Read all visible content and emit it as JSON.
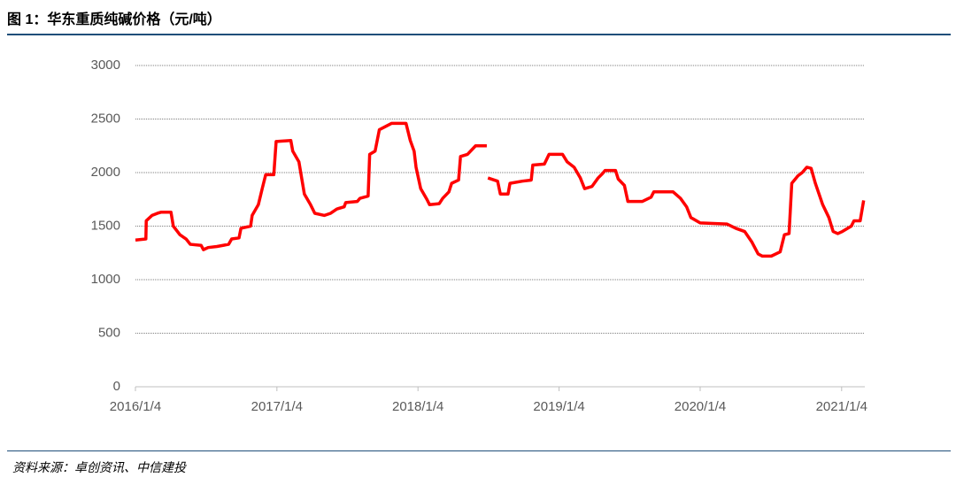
{
  "chart_data": {
    "type": "line",
    "title": "图 1：华东重质纯碱价格（元/吨）",
    "source": "资料来源：卓创资讯、中信建投",
    "color": "#ff0000",
    "x": [
      "2016/1/4",
      "2016/1/31",
      "2016/2/1",
      "2016/2/16",
      "2016/3/1",
      "2016/3/10",
      "2016/4/5",
      "2016/4/11",
      "2016/4/28",
      "2016/5/14",
      "2016/5/25",
      "2016/6/22",
      "2016/6/28",
      "2016/7/10",
      "2016/8/2",
      "2016/9/1",
      "2016/9/9",
      "2016/9/28",
      "2016/10/3",
      "2016/10/28",
      "2016/11/1",
      "2016/11/17",
      "2016/11/27",
      "2016/12/6",
      "2016/12/27",
      "2017/1/2",
      "2017/2/9",
      "2017/2/14",
      "2017/3/2",
      "2017/3/16",
      "2017/4/1",
      "2017/4/12",
      "2017/5/7",
      "2017/5/23",
      "2017/6/8",
      "2017/6/27",
      "2017/7/1",
      "2017/7/31",
      "2017/8/7",
      "2017/8/28",
      "2017/9/1",
      "2017/9/15",
      "2017/9/26",
      "2017/10/12",
      "2017/10/28",
      "2017/12/4",
      "2017/12/15",
      "2017/12/25",
      "2017/12/30",
      "2018/1/11",
      "2018/1/27",
      "2018/2/3",
      "2018/2/28",
      "2018/3/9",
      "2018/3/25",
      "2018/4/1",
      "2018/4/19",
      "2018/4/24",
      "2018/5/12",
      "2018/6/2",
      "2018/7/1",
      "2018/7/2",
      "2018/7/4",
      "2018/7/29",
      "2018/8/5",
      "2018/8/25",
      "2018/8/30",
      "2018/10/1",
      "2018/10/24",
      "2018/10/28",
      "2018/11/27",
      "2018/12/9",
      "2019/1/13",
      "2019/1/25",
      "2019/2/12",
      "2019/2/28",
      "2019/3/11",
      "2019/3/30",
      "2019/4/15",
      "2019/4/26",
      "2019/5/3",
      "2019/5/30",
      "2019/6/6",
      "2019/6/22",
      "2019/7/1",
      "2019/8/7",
      "2019/8/30",
      "2019/9/6",
      "2019/10/26",
      "2019/11/14",
      "2019/11/30",
      "2019/12/11",
      "2020/1/4",
      "2020/3/13",
      "2020/4/5",
      "2020/4/28",
      "2020/5/17",
      "2020/6/2",
      "2020/6/13",
      "2020/7/6",
      "2020/7/29",
      "2020/8/9",
      "2020/8/21",
      "2020/8/28",
      "2020/9/13",
      "2020/9/24",
      "2020/10/6",
      "2020/10/17",
      "2020/10/28",
      "2020/11/16",
      "2020/12/2",
      "2020/12/13",
      "2020/12/25",
      "2021/1/6",
      "2021/1/29",
      "2021/2/5",
      "2021/2/21",
      "2021/3/2"
    ],
    "values": [
      1370,
      1380,
      1550,
      1600,
      1620,
      1630,
      1630,
      1500,
      1420,
      1380,
      1330,
      1320,
      1280,
      1300,
      1310,
      1330,
      1380,
      1390,
      1480,
      1500,
      1600,
      1700,
      1850,
      1980,
      1980,
      2290,
      2300,
      2200,
      2100,
      1800,
      1700,
      1620,
      1600,
      1620,
      1660,
      1680,
      1720,
      1730,
      1760,
      1780,
      2170,
      2200,
      2400,
      2430,
      2460,
      2460,
      2300,
      2200,
      2050,
      1850,
      1750,
      1700,
      1710,
      1760,
      1820,
      1900,
      1930,
      2150,
      2170,
      2250,
      2250,
      null,
      1950,
      1920,
      1800,
      1800,
      1900,
      1920,
      1930,
      2070,
      2080,
      2170,
      2170,
      2100,
      2050,
      1950,
      1850,
      1870,
      1950,
      1990,
      2020,
      2020,
      1940,
      1880,
      1730,
      1730,
      1770,
      1820,
      1820,
      1760,
      1680,
      1580,
      1530,
      1520,
      1480,
      1450,
      1350,
      1240,
      1220,
      1220,
      1260,
      1420,
      1430,
      1900,
      1970,
      2000,
      2050,
      2040,
      1900,
      1700,
      1580,
      1450,
      1430,
      1450,
      1500,
      1550,
      1550,
      1740
    ],
    "xlim": [
      "2016/1/4",
      "2021/3/5"
    ],
    "xticks": [
      "2016/1/4",
      "2017/1/4",
      "2018/1/4",
      "2019/1/4",
      "2020/1/4",
      "2021/1/4"
    ],
    "ylim": [
      0,
      3000
    ],
    "yticks": [
      0,
      500,
      1000,
      1500,
      2000,
      2500,
      3000
    ],
    "grid": true
  }
}
